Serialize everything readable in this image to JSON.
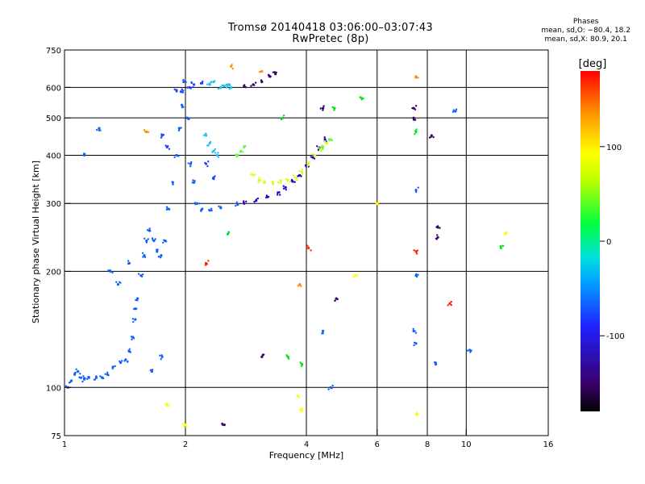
{
  "header": {
    "title_line1": "Tromsø 20140418 03:06:00–03:07:43",
    "title_line2": "RwPretec (8p)"
  },
  "phase_stats": {
    "heading": "Phases",
    "line_o": "mean, sd,O: −80.4, 18.2",
    "line_x": "mean, sd,X: 80.9, 20.1"
  },
  "chart_data": {
    "type": "scatter",
    "xlabel": "Frequency [MHz]",
    "ylabel": "Stationary phase Virtual Height [km]",
    "x_scale": "log2",
    "y_scale": "log",
    "xlim": [
      1,
      16
    ],
    "ylim": [
      75,
      750
    ],
    "x_ticks": [
      1,
      2,
      4,
      6,
      8,
      10,
      16
    ],
    "y_ticks": [
      75,
      100,
      200,
      300,
      400,
      500,
      600,
      750
    ],
    "x_grid": [
      2,
      4,
      6,
      8,
      10
    ],
    "y_grid": [
      100,
      200,
      300,
      400,
      500,
      600
    ],
    "colorbar": {
      "label": "[deg]",
      "range": [
        -180,
        180
      ],
      "ticks": [
        100,
        0,
        -100
      ],
      "colors": [
        "#000000",
        "#3a006a",
        "#2020ff",
        "#00a0ff",
        "#00e0e0",
        "#00ff40",
        "#c0ff00",
        "#ffff00",
        "#ff9000",
        "#ff0000"
      ]
    },
    "series": [
      {
        "color": "#1060ff",
        "points": [
          [
            1.02,
            100
          ],
          [
            1.04,
            104
          ],
          [
            1.06,
            108
          ],
          [
            1.08,
            110
          ],
          [
            1.1,
            106
          ],
          [
            1.12,
            105
          ],
          [
            1.15,
            106
          ],
          [
            1.2,
            106
          ],
          [
            1.24,
            106
          ],
          [
            1.28,
            108
          ],
          [
            1.32,
            113
          ],
          [
            1.38,
            116
          ],
          [
            1.42,
            118
          ],
          [
            1.45,
            124
          ],
          [
            1.48,
            135
          ],
          [
            1.5,
            150
          ],
          [
            1.52,
            170
          ],
          [
            1.55,
            195
          ],
          [
            1.58,
            220
          ],
          [
            1.6,
            240
          ],
          [
            1.63,
            255
          ],
          [
            1.67,
            240
          ],
          [
            1.7,
            225
          ],
          [
            1.74,
            220
          ],
          [
            1.78,
            240
          ],
          [
            1.82,
            290
          ],
          [
            1.86,
            340
          ],
          [
            1.9,
            400
          ],
          [
            1.93,
            470
          ],
          [
            1.96,
            540
          ],
          [
            1.98,
            620
          ],
          [
            2.02,
            500
          ],
          [
            2.06,
            380
          ],
          [
            2.1,
            340
          ],
          [
            2.14,
            300
          ],
          [
            2.2,
            290
          ],
          [
            2.3,
            288
          ],
          [
            2.45,
            292
          ],
          [
            2.7,
            298
          ]
        ]
      },
      {
        "color": "#2c00c8",
        "points": [
          [
            2.8,
            300
          ],
          [
            3.0,
            305
          ],
          [
            3.2,
            312
          ],
          [
            3.4,
            320
          ],
          [
            3.55,
            330
          ],
          [
            3.7,
            342
          ],
          [
            3.85,
            355
          ],
          [
            4.0,
            375
          ],
          [
            4.15,
            395
          ],
          [
            4.3,
            418
          ],
          [
            4.45,
            440
          ]
        ]
      },
      {
        "color": "#d8ff1a",
        "points": [
          [
            2.95,
            355
          ],
          [
            3.05,
            345
          ],
          [
            3.15,
            340
          ],
          [
            3.3,
            338
          ],
          [
            3.45,
            340
          ],
          [
            3.6,
            345
          ],
          [
            3.75,
            350
          ],
          [
            3.9,
            362
          ],
          [
            4.05,
            380
          ],
          [
            4.2,
            400
          ],
          [
            4.35,
            415
          ],
          [
            4.5,
            430
          ]
        ]
      },
      {
        "color": "#60ff40",
        "points": [
          [
            2.7,
            400
          ],
          [
            2.75,
            410
          ],
          [
            2.8,
            420
          ],
          [
            4.4,
            420
          ],
          [
            4.6,
            440
          ]
        ]
      },
      {
        "color": "#20c0f0",
        "points": [
          [
            2.3,
            610
          ],
          [
            2.35,
            620
          ],
          [
            2.45,
            600
          ],
          [
            2.5,
            605
          ],
          [
            2.55,
            610
          ],
          [
            2.6,
            600
          ],
          [
            2.25,
            450
          ],
          [
            2.3,
            430
          ],
          [
            2.35,
            410
          ],
          [
            2.4,
            400
          ]
        ]
      },
      {
        "color": "#1840ff",
        "points": [
          [
            2.1,
            610
          ],
          [
            2.2,
            615
          ],
          [
            2.05,
            600
          ],
          [
            1.95,
            585
          ],
          [
            1.9,
            590
          ],
          [
            1.8,
            420
          ],
          [
            1.75,
            450
          ],
          [
            2.25,
            380
          ],
          [
            2.35,
            350
          ]
        ]
      },
      {
        "color": "#3a006a",
        "points": [
          [
            2.8,
            605
          ],
          [
            2.95,
            610
          ],
          [
            3.1,
            620
          ],
          [
            3.25,
            640
          ],
          [
            3.35,
            650
          ]
        ]
      },
      {
        "color": "#ff9000",
        "points": [
          [
            3.1,
            660
          ],
          [
            2.6,
            680
          ],
          [
            1.6,
            460
          ],
          [
            3.85,
            185
          ],
          [
            7.5,
            640
          ]
        ]
      },
      {
        "color": "#ff2000",
        "points": [
          [
            2.25,
            210
          ],
          [
            4.05,
            230
          ],
          [
            7.5,
            225
          ],
          [
            9.1,
            165
          ]
        ]
      },
      {
        "color": "#00e020",
        "points": [
          [
            2.55,
            250
          ],
          [
            3.5,
            500
          ],
          [
            4.7,
            530
          ],
          [
            5.5,
            560
          ],
          [
            7.5,
            460
          ],
          [
            3.6,
            120
          ],
          [
            12.2,
            230
          ],
          [
            3.9,
            115
          ]
        ]
      },
      {
        "color": "#ffff00",
        "points": [
          [
            3.8,
            95
          ],
          [
            3.9,
            88
          ],
          [
            2.0,
            80
          ],
          [
            1.8,
            90
          ],
          [
            6.0,
            300
          ],
          [
            7.5,
            85
          ],
          [
            12.5,
            250
          ],
          [
            5.3,
            195
          ]
        ]
      },
      {
        "color": "#1060ff",
        "points": [
          [
            1.12,
            400
          ],
          [
            1.22,
            470
          ],
          [
            1.36,
            185
          ],
          [
            1.3,
            200
          ],
          [
            1.45,
            210
          ],
          [
            1.5,
            160
          ],
          [
            1.65,
            110
          ],
          [
            1.75,
            120
          ],
          [
            4.4,
            140
          ],
          [
            4.6,
            100
          ],
          [
            7.5,
            195
          ],
          [
            7.5,
            130
          ],
          [
            7.5,
            325
          ],
          [
            8.4,
            115
          ],
          [
            10.2,
            125
          ],
          [
            9.4,
            520
          ],
          [
            7.4,
            140
          ]
        ]
      },
      {
        "color": "#3a006a",
        "points": [
          [
            8.2,
            450
          ],
          [
            8.5,
            260
          ],
          [
            8.5,
            245
          ],
          [
            7.4,
            500
          ],
          [
            7.4,
            530
          ],
          [
            4.4,
            530
          ],
          [
            4.75,
            170
          ],
          [
            2.5,
            80
          ],
          [
            3.1,
            120
          ]
        ]
      }
    ]
  }
}
